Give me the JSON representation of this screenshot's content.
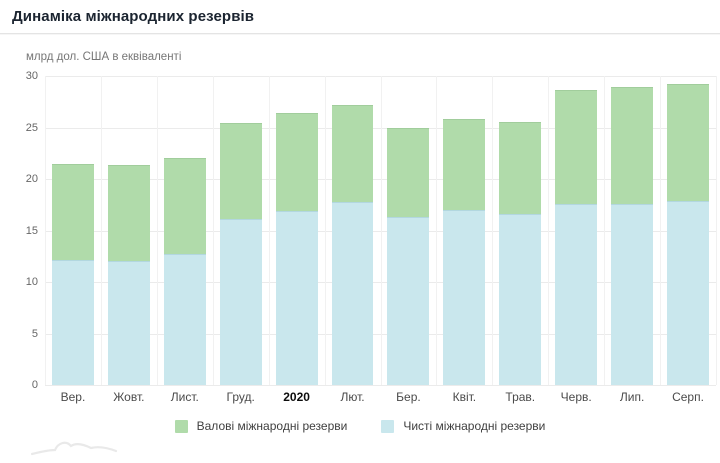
{
  "header": {
    "title": "Динаміка міжнародних резервів"
  },
  "chart": {
    "subtitle": "млрд дол. США в еквіваленті"
  },
  "legend": {
    "items": [
      {
        "label": "Валові міжнародні резерви",
        "color": "#b0dbaa"
      },
      {
        "label": "Чисті міжнародні резерви",
        "color": "#c9e7ed"
      }
    ]
  },
  "chart_data": {
    "type": "bar",
    "stacked": "overlay — blue (net) segment drawn over lower part of green (gross) total bar",
    "title": "Динаміка міжнародних резервів",
    "ylabel": "млрд дол. США в еквіваленті",
    "xlabel": "",
    "ylim": [
      0,
      30
    ],
    "yticks": [
      0,
      5,
      10,
      15,
      20,
      25,
      30
    ],
    "grid": true,
    "legend_position": "bottom",
    "categories": [
      "Вер.",
      "Жовт.",
      "Лист.",
      "Груд.",
      "2020",
      "Лют.",
      "Бер.",
      "Квіт.",
      "Трав.",
      "Черв.",
      "Лип.",
      "Серп."
    ],
    "bold_category_index": 4,
    "series": [
      {
        "name": "Валові міжнародні резерви",
        "color": "#b0dbaa",
        "values": [
          21.4,
          21.3,
          21.9,
          25.3,
          26.3,
          27.1,
          24.9,
          25.7,
          25.4,
          28.5,
          28.8,
          29.1
        ]
      },
      {
        "name": "Чисті міжнародні резерви",
        "color": "#c9e7ed",
        "values": [
          12.0,
          11.9,
          12.6,
          16.0,
          16.8,
          17.7,
          16.2,
          16.9,
          16.5,
          17.5,
          17.5,
          17.8
        ]
      }
    ]
  }
}
